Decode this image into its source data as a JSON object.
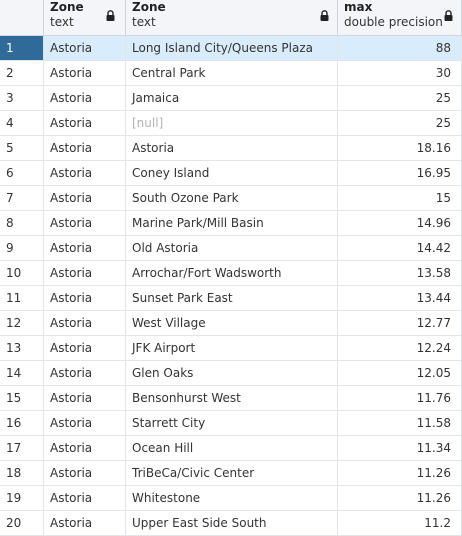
{
  "columns": [
    {
      "name": "Zone",
      "type": "text"
    },
    {
      "name": "Zone",
      "type": "text"
    },
    {
      "name": "max",
      "type": "double precision"
    }
  ],
  "rows": [
    {
      "n": "1",
      "a": "Astoria",
      "b": "Long Island City/Queens Plaza",
      "max": "88"
    },
    {
      "n": "2",
      "a": "Astoria",
      "b": "Central Park",
      "max": "30"
    },
    {
      "n": "3",
      "a": "Astoria",
      "b": "Jamaica",
      "max": "25"
    },
    {
      "n": "4",
      "a": "Astoria",
      "b": "[null]",
      "max": "25"
    },
    {
      "n": "5",
      "a": "Astoria",
      "b": "Astoria",
      "max": "18.16"
    },
    {
      "n": "6",
      "a": "Astoria",
      "b": "Coney Island",
      "max": "16.95"
    },
    {
      "n": "7",
      "a": "Astoria",
      "b": "South Ozone Park",
      "max": "15"
    },
    {
      "n": "8",
      "a": "Astoria",
      "b": "Marine Park/Mill Basin",
      "max": "14.96"
    },
    {
      "n": "9",
      "a": "Astoria",
      "b": "Old Astoria",
      "max": "14.42"
    },
    {
      "n": "10",
      "a": "Astoria",
      "b": "Arrochar/Fort Wadsworth",
      "max": "13.58"
    },
    {
      "n": "11",
      "a": "Astoria",
      "b": "Sunset Park East",
      "max": "13.44"
    },
    {
      "n": "12",
      "a": "Astoria",
      "b": "West Village",
      "max": "12.77"
    },
    {
      "n": "13",
      "a": "Astoria",
      "b": "JFK Airport",
      "max": "12.24"
    },
    {
      "n": "14",
      "a": "Astoria",
      "b": "Glen Oaks",
      "max": "12.05"
    },
    {
      "n": "15",
      "a": "Astoria",
      "b": "Bensonhurst West",
      "max": "11.76"
    },
    {
      "n": "16",
      "a": "Astoria",
      "b": "Starrett City",
      "max": "11.58"
    },
    {
      "n": "17",
      "a": "Astoria",
      "b": "Ocean Hill",
      "max": "11.34"
    },
    {
      "n": "18",
      "a": "Astoria",
      "b": "TriBeCa/Civic Center",
      "max": "11.26"
    },
    {
      "n": "19",
      "a": "Astoria",
      "b": "Whitestone",
      "max": "11.26"
    },
    {
      "n": "20",
      "a": "Astoria",
      "b": "Upper East Side South",
      "max": "11.2"
    }
  ],
  "selected_row": 0,
  "null_text": "[null]",
  "colors": {
    "selected_rownum": "#2f6a99",
    "selected_row": "#d9ecfb",
    "null_text": "#b3b3b3"
  },
  "icons": {
    "column_lock": "lock-icon"
  }
}
